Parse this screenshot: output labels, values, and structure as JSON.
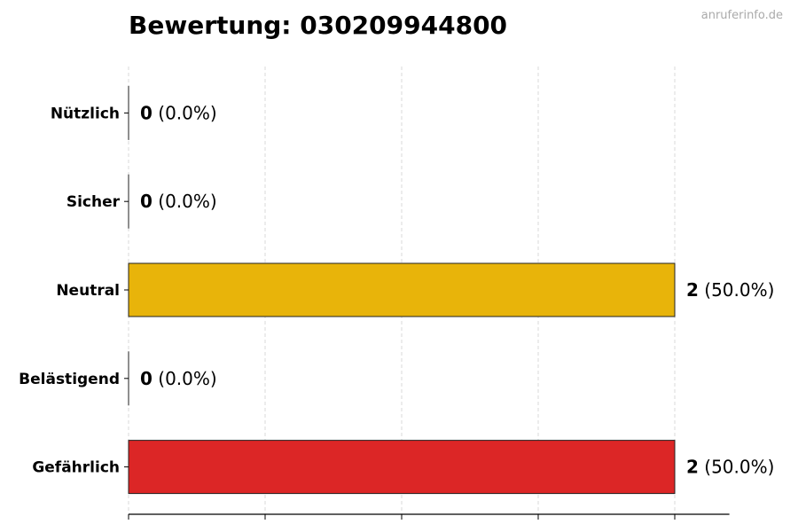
{
  "watermark": "anruferinfo.de",
  "chart_data": {
    "type": "bar",
    "orientation": "horizontal",
    "title": "Bewertung: 030209944800",
    "categories": [
      "Nützlich",
      "Sicher",
      "Neutral",
      "Belästigend",
      "Gefährlich"
    ],
    "values": [
      0,
      0,
      2,
      0,
      2
    ],
    "labels_pct": [
      "(0.0%)",
      "(0.0%)",
      "(50.0%)",
      "(0.0%)",
      "(50.0%)"
    ],
    "colors": [
      "#2e9e44",
      "#3a7bd5",
      "#e8b40a",
      "#f07d1a",
      "#dc2626"
    ],
    "xlim": [
      0,
      2.2
    ],
    "xticks": [
      0,
      0.5,
      1,
      1.5,
      2
    ],
    "xtick_labels_shown": false,
    "grid": "x-dashed",
    "xlabel": "",
    "ylabel": ""
  }
}
